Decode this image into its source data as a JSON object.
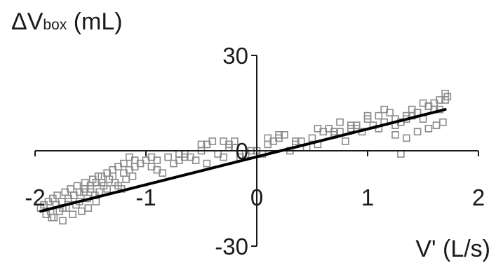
{
  "chart_data": {
    "type": "scatter",
    "ylabel": {
      "prefix": "ΔV",
      "subscript": "box",
      "suffix": " (mL)"
    },
    "xlabel": "V' (L/s)",
    "xlim": [
      -2,
      2
    ],
    "ylim": [
      -30,
      30
    ],
    "x_ticks": [
      -2,
      -1,
      0,
      1,
      2
    ],
    "x_tick_labels": [
      "-2",
      "-1",
      "0",
      "1",
      "2"
    ],
    "y_ticks": [
      30,
      0,
      -30
    ],
    "y_tick_labels": [
      "30",
      "0",
      "-30"
    ],
    "grid": false,
    "legend": "none",
    "marker": "open-square",
    "marker_color": "#8a8a8a",
    "line_color": "#000000",
    "fit_line": {
      "x": [
        -1.95,
        1.7
      ],
      "y": [
        -19,
        13
      ]
    },
    "points_x": [
      -1.95,
      -1.92,
      -1.9,
      -1.88,
      -1.86,
      -1.84,
      -1.83,
      -1.81,
      -1.8,
      -1.78,
      -1.76,
      -1.75,
      -1.73,
      -1.72,
      -1.7,
      -1.68,
      -1.66,
      -1.65,
      -1.63,
      -1.62,
      -1.6,
      -1.58,
      -1.56,
      -1.55,
      -1.53,
      -1.52,
      -1.5,
      -1.48,
      -1.46,
      -1.45,
      -1.43,
      -1.42,
      -1.4,
      -1.38,
      -1.35,
      -1.33,
      -1.3,
      -1.28,
      -1.25,
      -1.22,
      -1.2,
      -1.18,
      -1.15,
      -1.12,
      -1.1,
      -1.05,
      -1.0,
      -0.95,
      -0.9,
      -0.85,
      -0.8,
      -0.75,
      -0.7,
      -0.65,
      -0.6,
      -0.55,
      -0.5,
      -0.45,
      -0.4,
      -0.35,
      -0.3,
      -0.25,
      -0.2,
      -0.15,
      -0.1,
      -0.05,
      0.0,
      0.05,
      0.1,
      0.15,
      0.2,
      0.25,
      0.3,
      0.35,
      0.4,
      0.45,
      0.5,
      0.55,
      0.6,
      0.65,
      0.7,
      0.75,
      0.8,
      0.85,
      0.9,
      0.95,
      1.0,
      1.05,
      1.1,
      1.15,
      1.2,
      1.25,
      1.3,
      1.35,
      1.4,
      1.45,
      1.5,
      1.55,
      1.6,
      1.65,
      1.7,
      1.72,
      -1.85,
      -1.75,
      -1.7,
      -1.6,
      -1.55,
      -1.5,
      -1.45,
      -1.4,
      -1.35,
      -1.3,
      -1.25,
      -1.2,
      -1.15,
      -1.1,
      -0.95,
      -0.9,
      -0.7,
      -0.65,
      -0.5,
      -0.45,
      -0.25,
      -0.2,
      -0.3,
      0.1,
      0.2,
      0.35,
      0.55,
      0.7,
      0.75,
      0.85,
      0.9,
      1.0,
      1.1,
      1.15,
      1.25,
      1.3,
      1.35,
      1.4,
      1.45,
      1.5,
      1.55,
      1.6,
      1.65,
      1.7,
      1.25,
      1.35,
      1.45,
      1.55,
      1.62,
      1.68
    ],
    "points_y": [
      -18,
      -17,
      -20,
      -16,
      -19,
      -15,
      -21,
      -17,
      -14,
      -19,
      -16,
      -22,
      -13,
      -18,
      -15,
      -12,
      -20,
      -14,
      -17,
      -11,
      -16,
      -19,
      -13,
      -10,
      -15,
      -18,
      -12,
      -9,
      -14,
      -16,
      -8,
      -13,
      -10,
      -11,
      -12,
      -9,
      -8,
      -10,
      -11,
      -12,
      -7,
      -9,
      -6,
      -8,
      -5,
      -4,
      -3,
      -5,
      -6,
      -7,
      -2,
      -4,
      -3,
      -1,
      -2,
      -3,
      0,
      -4,
      3,
      -1,
      3,
      2,
      1,
      -2,
      -1,
      0,
      0,
      -1,
      2,
      3,
      4,
      5,
      0,
      2,
      3,
      1,
      4,
      2,
      6,
      7,
      5,
      6,
      3,
      8,
      7,
      6,
      10,
      8,
      11,
      9,
      12,
      10,
      -1,
      11,
      13,
      12,
      10,
      14,
      15,
      13,
      16,
      17,
      -21,
      -18,
      -16,
      -13,
      -12,
      -11,
      -10,
      -8,
      -7,
      -6,
      -5,
      -4,
      -2,
      -3,
      -2,
      -3,
      -1,
      -2,
      2,
      2,
      1,
      3,
      -2,
      4,
      5,
      3,
      7,
      6,
      9,
      7,
      8,
      11,
      7,
      13,
      8,
      9,
      10,
      11,
      12,
      15,
      14,
      13,
      16,
      18,
      5,
      4,
      6,
      7,
      8,
      9
    ]
  }
}
